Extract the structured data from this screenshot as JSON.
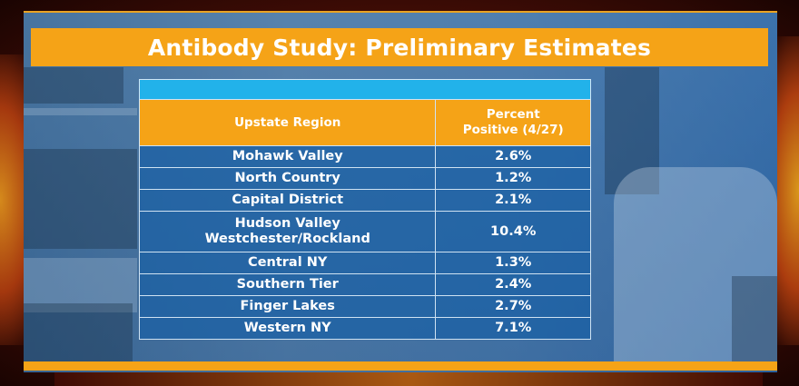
{
  "title": "Antibody Study: Preliminary Estimates",
  "colors": {
    "title_bar": "#f5a317",
    "header_band": "#22b2ea",
    "header_row": "#f5a317",
    "cell_bg": "#1f62a8",
    "text": "#ffffff"
  },
  "chart_data": {
    "type": "table",
    "title": "Antibody Study: Preliminary Estimates",
    "columns": [
      "Upstate Region",
      "Percent Positive (4/27)"
    ],
    "rows": [
      {
        "region": "Mohawk Valley",
        "value": "2.6%"
      },
      {
        "region": "North Country",
        "value": "1.2%"
      },
      {
        "region": "Capital District",
        "value": "2.1%"
      },
      {
        "region": "Hudson Valley Westchester/Rockland",
        "region_line1": "Hudson Valley",
        "region_line2": "Westchester/Rockland",
        "value": "10.4%"
      },
      {
        "region": "Central NY",
        "value": "1.3%"
      },
      {
        "region": "Southern Tier",
        "value": "2.4%"
      },
      {
        "region": "Finger Lakes",
        "value": "2.7%"
      },
      {
        "region": "Western NY",
        "value": "7.1%"
      }
    ]
  },
  "table": {
    "header_col1": "Upstate Region",
    "header_col2_line1": "Percent",
    "header_col2_line2": "Positive (4/27)"
  }
}
